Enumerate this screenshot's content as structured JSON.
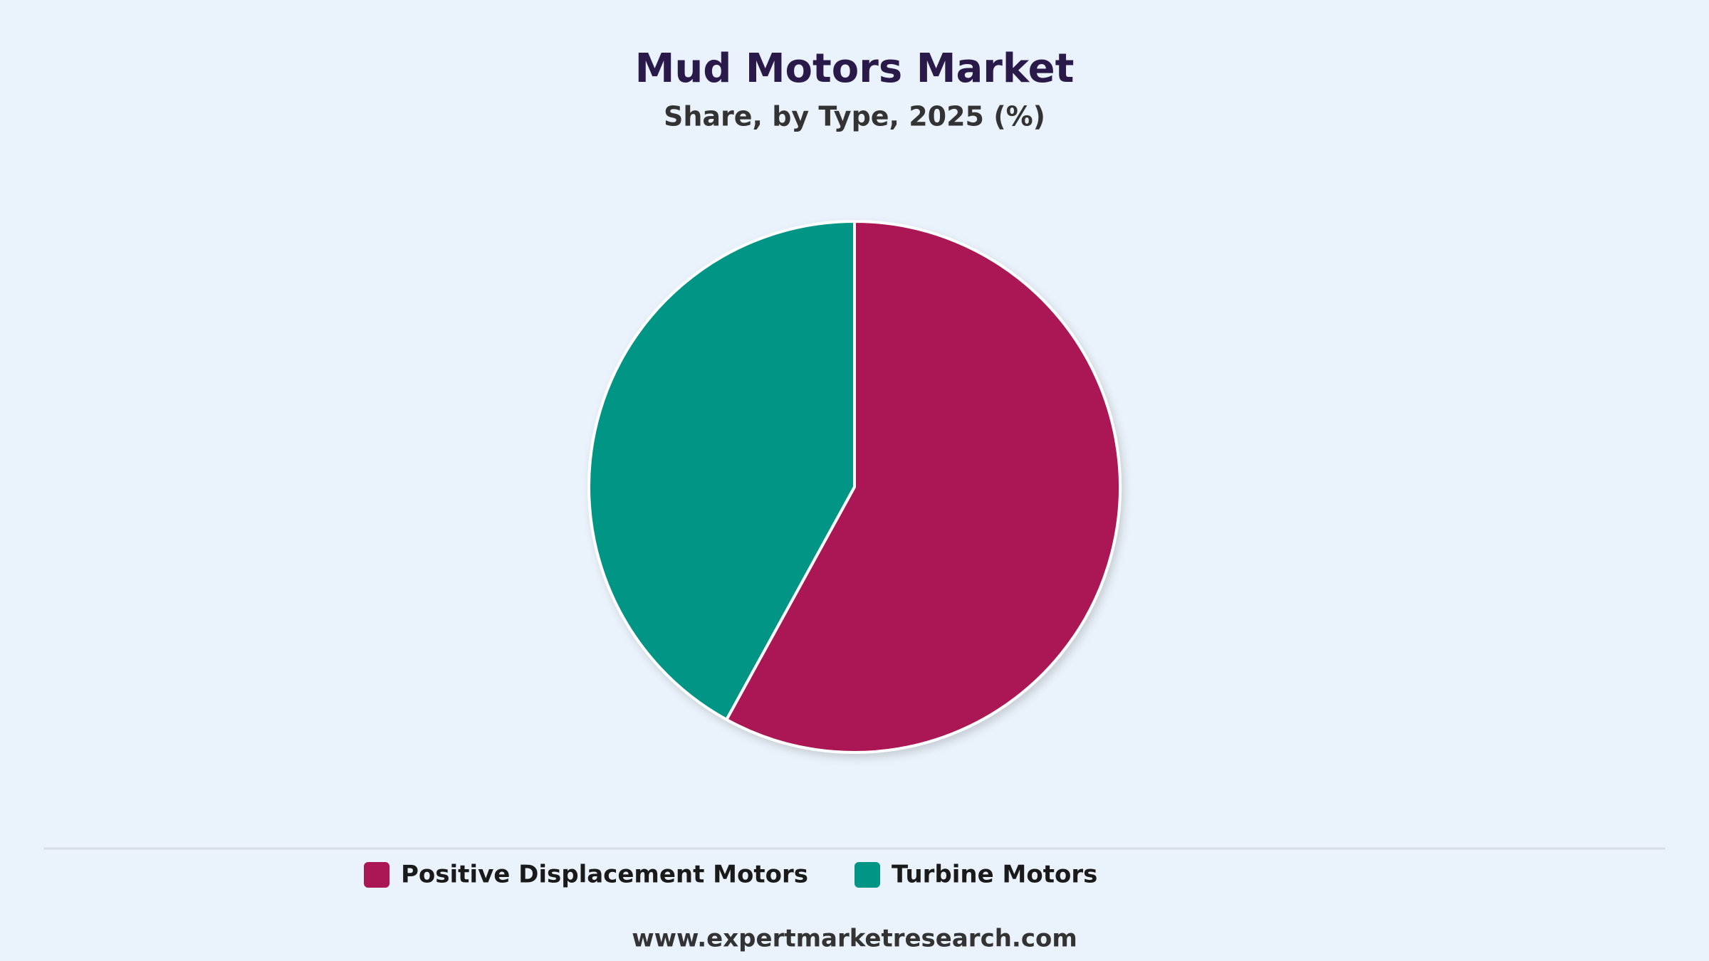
{
  "chart_data": {
    "type": "pie",
    "title": "Mud Motors Market",
    "subtitle": "Share, by Type, 2025 (%)",
    "categories": [
      "Positive Displacement Motors",
      "Turbine Motors"
    ],
    "values": [
      58,
      42
    ],
    "colors": [
      "#ab1754",
      "#009585"
    ]
  },
  "footer": "www.expertmarketresearch.com"
}
